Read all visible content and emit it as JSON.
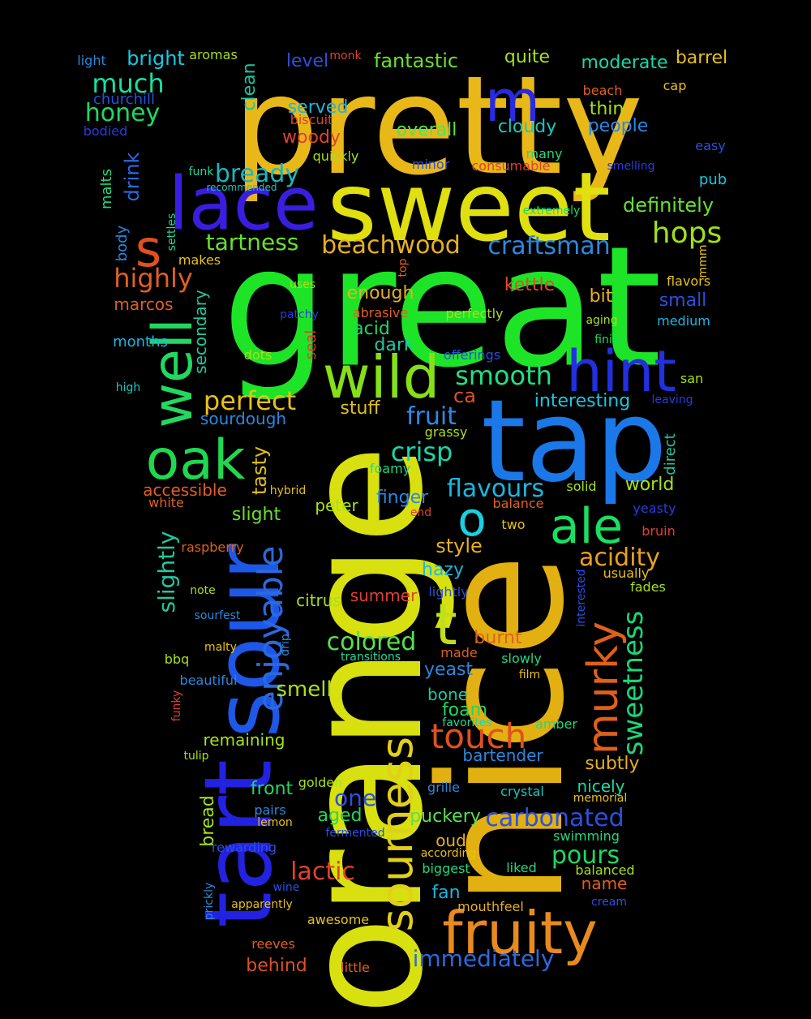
{
  "words": [
    {
      "text": "pretty",
      "color": "#e8b818"
    },
    {
      "text": "great",
      "color": "#1ee428"
    },
    {
      "text": "sweet",
      "color": "#e0e010"
    },
    {
      "text": "nice",
      "color": "#e2b010"
    },
    {
      "text": "orange",
      "color": "#d8e010"
    },
    {
      "text": "tap",
      "color": "#1a78e8"
    },
    {
      "text": "tart",
      "color": "#2222e0"
    },
    {
      "text": "sour",
      "color": "#1e58e8"
    },
    {
      "text": "lace",
      "color": "#3a1ee0"
    },
    {
      "text": "wild",
      "color": "#86e018"
    },
    {
      "text": "hint",
      "color": "#2230e0"
    },
    {
      "text": "oak",
      "color": "#20d850"
    },
    {
      "text": "well",
      "color": "#22d860"
    },
    {
      "text": "fruity",
      "color": "#e88a20"
    },
    {
      "text": "sourness",
      "color": "#e0d018"
    },
    {
      "text": "murky",
      "color": "#e06018"
    },
    {
      "text": "ale",
      "color": "#18e060"
    },
    {
      "text": "enjoyable",
      "color": "#2a6ae0"
    },
    {
      "text": "touch",
      "color": "#e05020"
    },
    {
      "text": "sweetness",
      "color": "#18d878"
    },
    {
      "text": "m",
      "color": "#2a2ae0"
    },
    {
      "text": "s",
      "color": "#e05020"
    },
    {
      "text": "t",
      "color": "#c0e018"
    },
    {
      "text": "o",
      "color": "#18d0e0"
    },
    {
      "text": "perfect",
      "color": "#e8c018"
    },
    {
      "text": "beachwood",
      "color": "#e8b020"
    },
    {
      "text": "tartness",
      "color": "#68e030"
    },
    {
      "text": "craftsman",
      "color": "#2a88e0"
    },
    {
      "text": "hops",
      "color": "#a0e018"
    },
    {
      "text": "highly",
      "color": "#e06020"
    },
    {
      "text": "much",
      "color": "#18e0a0"
    },
    {
      "text": "honey",
      "color": "#20d860"
    },
    {
      "text": "bready",
      "color": "#18b8c0"
    },
    {
      "text": "smooth",
      "color": "#20e080"
    },
    {
      "text": "fruit",
      "color": "#2a8ae8"
    },
    {
      "text": "crisp",
      "color": "#18d8a8"
    },
    {
      "text": "flavours",
      "color": "#18b8e0"
    },
    {
      "text": "acidity",
      "color": "#e8a020"
    },
    {
      "text": "colored",
      "color": "#58e050"
    },
    {
      "text": "carbonated",
      "color": "#2a50e0"
    },
    {
      "text": "pours",
      "color": "#20d860"
    },
    {
      "text": "lactic",
      "color": "#e04030"
    },
    {
      "text": "immediately",
      "color": "#2a6ae0"
    },
    {
      "text": "slightly",
      "color": "#20c8a0"
    },
    {
      "text": "tasty",
      "color": "#e0c018"
    },
    {
      "text": "drink",
      "color": "#2a6ae0"
    },
    {
      "text": "fantastic",
      "color": "#68e030"
    },
    {
      "text": "bright",
      "color": "#18c8e0"
    },
    {
      "text": "definitely",
      "color": "#68e030"
    },
    {
      "text": "interesting",
      "color": "#18c8e0"
    },
    {
      "text": "style",
      "color": "#e8b020"
    },
    {
      "text": "smell",
      "color": "#a8e018"
    },
    {
      "text": "foam",
      "color": "#20d860"
    },
    {
      "text": "one",
      "color": "#2a50e0"
    },
    {
      "text": "barrel",
      "color": "#e8c018"
    },
    {
      "text": "moderate",
      "color": "#18d8a8"
    },
    {
      "text": "overall",
      "color": "#58e050"
    },
    {
      "text": "cloudy",
      "color": "#18c8c0"
    },
    {
      "text": "people",
      "color": "#2a88e0"
    },
    {
      "text": "served",
      "color": "#18b8e0"
    },
    {
      "text": "woody",
      "color": "#e04030"
    },
    {
      "text": "level",
      "color": "#2a50e0"
    },
    {
      "text": "clean",
      "color": "#18c8a0"
    },
    {
      "text": "quite",
      "color": "#a8e018"
    },
    {
      "text": "thin",
      "color": "#a8e018"
    },
    {
      "text": "kettle",
      "color": "#e05020"
    },
    {
      "text": "bit",
      "color": "#e8b020"
    },
    {
      "text": "small",
      "color": "#2a50e0"
    },
    {
      "text": "enough",
      "color": "#e8b020"
    },
    {
      "text": "acid",
      "color": "#20d860"
    },
    {
      "text": "dark",
      "color": "#20c8a0"
    },
    {
      "text": "marcos",
      "color": "#e06020"
    },
    {
      "text": "months",
      "color": "#18b8e0"
    },
    {
      "text": "stuff",
      "color": "#e0c018"
    },
    {
      "text": "ca",
      "color": "#e05020"
    },
    {
      "text": "sourdough",
      "color": "#2a88e0"
    },
    {
      "text": "secondary",
      "color": "#20c8a0"
    },
    {
      "text": "accessible",
      "color": "#e06020"
    },
    {
      "text": "slight",
      "color": "#68e030"
    },
    {
      "text": "finger",
      "color": "#2a88e0"
    },
    {
      "text": "peter",
      "color": "#a8e018"
    },
    {
      "text": "world",
      "color": "#a8e018"
    },
    {
      "text": "direct",
      "color": "#20c8a0"
    },
    {
      "text": "hazy",
      "color": "#18b8e0"
    },
    {
      "text": "summer",
      "color": "#e04030"
    },
    {
      "text": "citrus",
      "color": "#a8e018"
    },
    {
      "text": "burnt",
      "color": "#e06020"
    },
    {
      "text": "yeast",
      "color": "#2a88e0"
    },
    {
      "text": "bone",
      "color": "#20c8a0"
    },
    {
      "text": "remaining",
      "color": "#a8e018"
    },
    {
      "text": "bartender",
      "color": "#2a88e0"
    },
    {
      "text": "subtly",
      "color": "#e8b020"
    },
    {
      "text": "front",
      "color": "#20d860"
    },
    {
      "text": "nicely",
      "color": "#20d8a0"
    },
    {
      "text": "puckery",
      "color": "#58e050"
    },
    {
      "text": "aged",
      "color": "#20d860"
    },
    {
      "text": "oud",
      "color": "#e8b020"
    },
    {
      "text": "bread",
      "color": "#a8e018"
    },
    {
      "text": "name",
      "color": "#e06020"
    },
    {
      "text": "fan",
      "color": "#18b8e0"
    },
    {
      "text": "behind",
      "color": "#e05020"
    },
    {
      "text": "malts",
      "color": "#20d880"
    },
    {
      "text": "body",
      "color": "#2a88e0"
    },
    {
      "text": "light",
      "color": "#2a88e0"
    },
    {
      "text": "aromas",
      "color": "#a8e018"
    },
    {
      "text": "monk",
      "color": "#e04030"
    },
    {
      "text": "churchill",
      "color": "#2a50e0"
    },
    {
      "text": "bodied",
      "color": "#2a3ae0"
    },
    {
      "text": "biscuit",
      "color": "#e04030"
    },
    {
      "text": "beach",
      "color": "#e06020"
    },
    {
      "text": "cap",
      "color": "#e8c018"
    },
    {
      "text": "easy",
      "color": "#2a50e0"
    },
    {
      "text": "quickly",
      "color": "#a8e018"
    },
    {
      "text": "minor",
      "color": "#2a50e0"
    },
    {
      "text": "consumable",
      "color": "#e04030"
    },
    {
      "text": "many",
      "color": "#20d880"
    },
    {
      "text": "smelling",
      "color": "#2a3ae0"
    },
    {
      "text": "funk",
      "color": "#20d8a0"
    },
    {
      "text": "recommended",
      "color": "#18c8c0"
    },
    {
      "text": "extremely",
      "color": "#20d860"
    },
    {
      "text": "pub",
      "color": "#18c8e0"
    },
    {
      "text": "settles",
      "color": "#20d8a0"
    },
    {
      "text": "makes",
      "color": "#e8c018"
    },
    {
      "text": "top",
      "color": "#e06020"
    },
    {
      "text": "mmm",
      "color": "#e8c018"
    },
    {
      "text": "uses",
      "color": "#a8e018"
    },
    {
      "text": "patchy",
      "color": "#2a3ae0"
    },
    {
      "text": "abrasive",
      "color": "#e06020"
    },
    {
      "text": "perfectly",
      "color": "#a8e018"
    },
    {
      "text": "aging",
      "color": "#a8e018"
    },
    {
      "text": "flavors",
      "color": "#e8c018"
    },
    {
      "text": "medium",
      "color": "#18b8e0"
    },
    {
      "text": "finish",
      "color": "#20d860"
    },
    {
      "text": "seal",
      "color": "#e04030"
    },
    {
      "text": "dots",
      "color": "#a8e018"
    },
    {
      "text": "offerings",
      "color": "#2a50e0"
    },
    {
      "text": "high",
      "color": "#18c8c0"
    },
    {
      "text": "san",
      "color": "#a8e018"
    },
    {
      "text": "leaving",
      "color": "#2a3ae0"
    },
    {
      "text": "grassy",
      "color": "#a8e018"
    },
    {
      "text": "foamy",
      "color": "#20d880"
    },
    {
      "text": "hybrid",
      "color": "#e8c018"
    },
    {
      "text": "white",
      "color": "#e06020"
    },
    {
      "text": "end",
      "color": "#e04030"
    },
    {
      "text": "balance",
      "color": "#e06020"
    },
    {
      "text": "solid",
      "color": "#a8e018"
    },
    {
      "text": "yeasty",
      "color": "#2a3ae0"
    },
    {
      "text": "two",
      "color": "#e8c018"
    },
    {
      "text": "bruin",
      "color": "#e04030"
    },
    {
      "text": "raspberry",
      "color": "#e06020"
    },
    {
      "text": "usually",
      "color": "#e8c018"
    },
    {
      "text": "lightly",
      "color": "#2a50e0"
    },
    {
      "text": "interested",
      "color": "#2a50e0"
    },
    {
      "text": "fades",
      "color": "#a8e018"
    },
    {
      "text": "note",
      "color": "#a8e018"
    },
    {
      "text": "sourfest",
      "color": "#2a88e0"
    },
    {
      "text": "malty",
      "color": "#e8c018"
    },
    {
      "text": "drip",
      "color": "#2a88e0"
    },
    {
      "text": "transitions",
      "color": "#20d8a0"
    },
    {
      "text": "made",
      "color": "#e06020"
    },
    {
      "text": "slowly",
      "color": "#20d880"
    },
    {
      "text": "bbq",
      "color": "#a8e018"
    },
    {
      "text": "beautiful",
      "color": "#2a88e0"
    },
    {
      "text": "film",
      "color": "#e8c018"
    },
    {
      "text": "funky",
      "color": "#e04030"
    },
    {
      "text": "favorites",
      "color": "#20d8a0"
    },
    {
      "text": "amber",
      "color": "#20d880"
    },
    {
      "text": "tulip",
      "color": "#a8e018"
    },
    {
      "text": "golden",
      "color": "#a8e018"
    },
    {
      "text": "grille",
      "color": "#2a88e0"
    },
    {
      "text": "crystal",
      "color": "#18c8c0"
    },
    {
      "text": "memorial",
      "color": "#e8c018"
    },
    {
      "text": "pairs",
      "color": "#2a88e0"
    },
    {
      "text": "lemon",
      "color": "#e8c018"
    },
    {
      "text": "fermented",
      "color": "#2a50e0"
    },
    {
      "text": "swimming",
      "color": "#20d880"
    },
    {
      "text": "rewarding",
      "color": "#2a50e0"
    },
    {
      "text": "according",
      "color": "#e8c018"
    },
    {
      "text": "biggest",
      "color": "#20d880"
    },
    {
      "text": "liked",
      "color": "#20d880"
    },
    {
      "text": "balanced",
      "color": "#a8e018"
    },
    {
      "text": "wine",
      "color": "#2a50e0"
    },
    {
      "text": "prickly",
      "color": "#2a88e0"
    },
    {
      "text": "apparently",
      "color": "#e8c018"
    },
    {
      "text": "mouthfeel",
      "color": "#e8b020"
    },
    {
      "text": "cream",
      "color": "#2a50e0"
    },
    {
      "text": "awesome",
      "color": "#e8c018"
    },
    {
      "text": "reeves",
      "color": "#e06020"
    },
    {
      "text": "little",
      "color": "#e06020"
    }
  ]
}
